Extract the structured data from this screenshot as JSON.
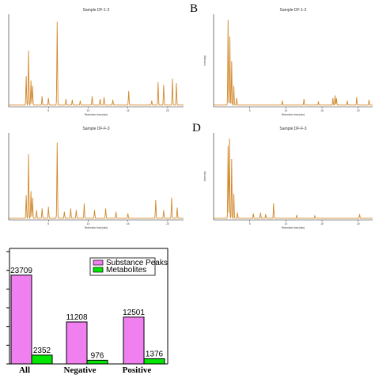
{
  "panel_letters": {
    "b": "B",
    "d": "D"
  },
  "chart_data": [
    {
      "type": "line",
      "panel": "A-top",
      "title": "Sample DF-1-2",
      "xlabel": "Retention time(min)",
      "ylabel": "",
      "xlim": [
        0,
        22
      ],
      "x_ticks": [
        5,
        10,
        15,
        20
      ],
      "peaks": [
        [
          2.2,
          0.33
        ],
        [
          2.5,
          0.62
        ],
        [
          2.8,
          0.28
        ],
        [
          3.0,
          0.22
        ],
        [
          4.2,
          0.1
        ],
        [
          5.0,
          0.08
        ],
        [
          6.1,
          0.95
        ],
        [
          7.2,
          0.07
        ],
        [
          8.0,
          0.06
        ],
        [
          9.0,
          0.05
        ],
        [
          10.5,
          0.1
        ],
        [
          11.5,
          0.07
        ],
        [
          12.0,
          0.09
        ],
        [
          13.1,
          0.06
        ],
        [
          15.1,
          0.16
        ],
        [
          18.0,
          0.05
        ],
        [
          18.8,
          0.26
        ],
        [
          19.5,
          0.23
        ],
        [
          20.6,
          0.3
        ],
        [
          21.1,
          0.25
        ]
      ]
    },
    {
      "type": "line",
      "panel": "B",
      "title": "Sample DF-1-2",
      "xlabel": "Retention time(min)",
      "ylabel": "Intensity",
      "xlim": [
        0,
        22
      ],
      "x_ticks": [
        5,
        10,
        15,
        20
      ],
      "peaks": [
        [
          2.0,
          0.97
        ],
        [
          2.25,
          0.78
        ],
        [
          2.5,
          0.5
        ],
        [
          2.8,
          0.22
        ],
        [
          3.2,
          0.08
        ],
        [
          9.5,
          0.05
        ],
        [
          12.5,
          0.07
        ],
        [
          14.5,
          0.04
        ],
        [
          16.5,
          0.08
        ],
        [
          16.8,
          0.11
        ],
        [
          17.0,
          0.08
        ],
        [
          18.5,
          0.05
        ],
        [
          19.8,
          0.09
        ],
        [
          21.5,
          0.06
        ]
      ]
    },
    {
      "type": "line",
      "panel": "A-bottom",
      "title": "Sample DF-F-3",
      "xlabel": "Retention time(min)",
      "ylabel": "",
      "xlim": [
        0,
        22
      ],
      "x_ticks": [
        5,
        10,
        15,
        20
      ],
      "peaks": [
        [
          2.2,
          0.28
        ],
        [
          2.5,
          0.78
        ],
        [
          2.8,
          0.33
        ],
        [
          3.0,
          0.25
        ],
        [
          3.5,
          0.1
        ],
        [
          4.2,
          0.12
        ],
        [
          5.0,
          0.14
        ],
        [
          6.1,
          0.92
        ],
        [
          7.0,
          0.08
        ],
        [
          7.8,
          0.12
        ],
        [
          8.5,
          0.1
        ],
        [
          9.5,
          0.18
        ],
        [
          10.8,
          0.1
        ],
        [
          12.2,
          0.12
        ],
        [
          13.5,
          0.08
        ],
        [
          15.0,
          0.06
        ],
        [
          18.5,
          0.22
        ],
        [
          19.5,
          0.1
        ],
        [
          20.5,
          0.25
        ],
        [
          21.2,
          0.13
        ]
      ]
    },
    {
      "type": "line",
      "panel": "D",
      "title": "Sample DF-F-3",
      "xlabel": "Retention time(min)",
      "ylabel": "Intensity",
      "xlim": [
        0,
        22
      ],
      "x_ticks": [
        5,
        10,
        15,
        20
      ],
      "peaks": [
        [
          2.0,
          0.88
        ],
        [
          2.2,
          0.97
        ],
        [
          2.5,
          0.72
        ],
        [
          2.8,
          0.3
        ],
        [
          3.3,
          0.07
        ],
        [
          5.5,
          0.06
        ],
        [
          6.5,
          0.07
        ],
        [
          7.2,
          0.05
        ],
        [
          8.3,
          0.18
        ],
        [
          11.5,
          0.04
        ],
        [
          14.0,
          0.03
        ],
        [
          20.2,
          0.05
        ]
      ]
    },
    {
      "type": "bar",
      "panel": "C",
      "categories": [
        "All",
        "Negative",
        "Positive"
      ],
      "series": [
        {
          "name": "Substance Peaks",
          "color": "#f080f0",
          "values": [
            23709,
            11208,
            12501
          ]
        },
        {
          "name": "Metabolites",
          "color": "#00e600",
          "values": [
            2352,
            976,
            1376
          ]
        }
      ],
      "ylim": [
        0,
        30000
      ],
      "legend_position": "top-right"
    }
  ]
}
